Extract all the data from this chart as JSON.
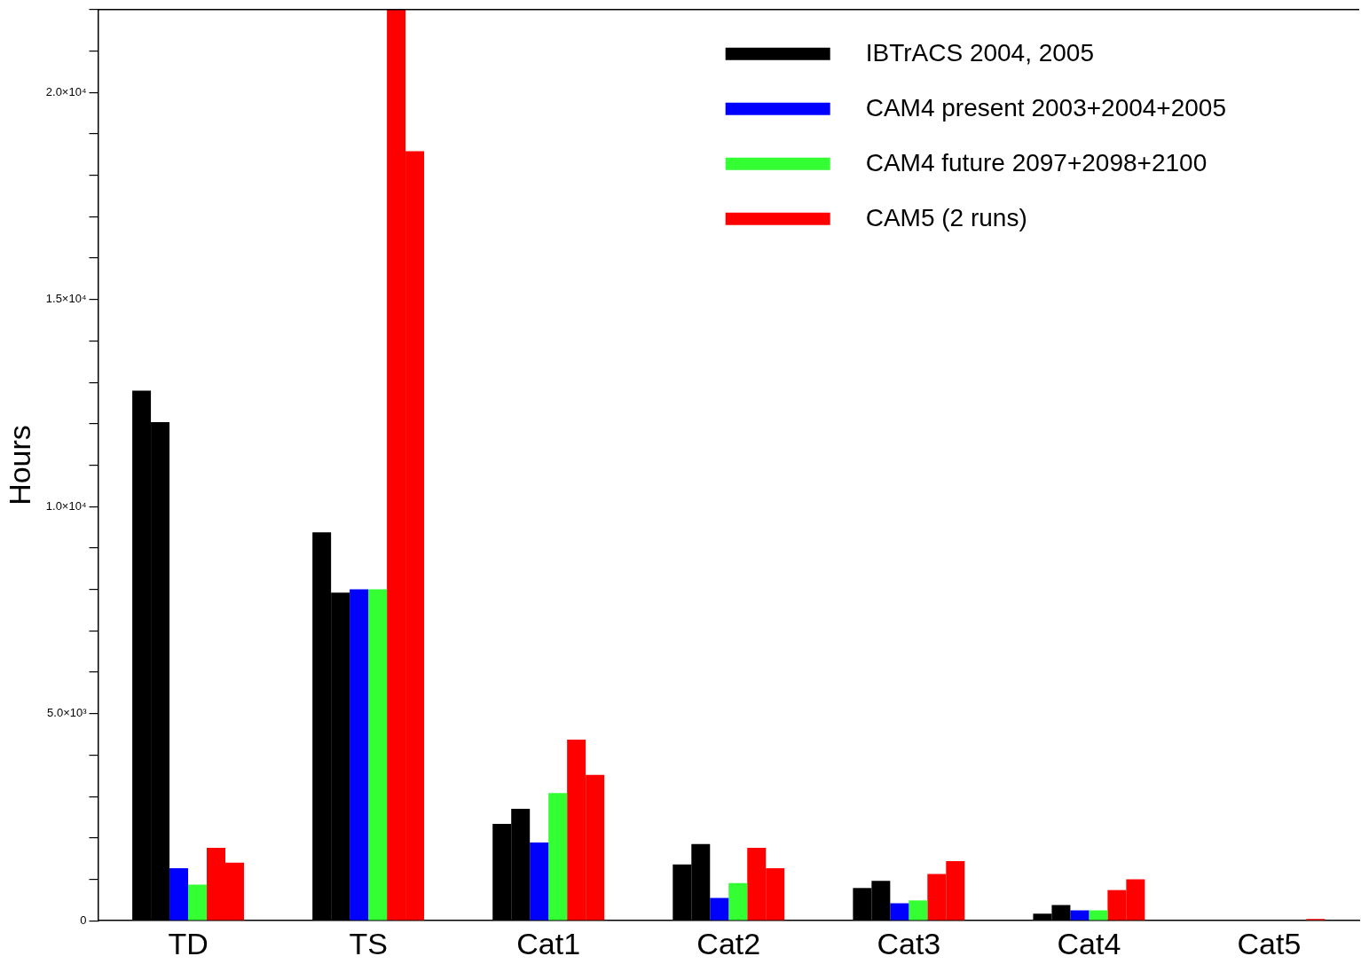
{
  "chart_data": {
    "type": "bar",
    "ylabel": "Hours",
    "categories": [
      "TD",
      "TS",
      "Cat1",
      "Cat2",
      "Cat3",
      "Cat4",
      "Cat5"
    ],
    "series": [
      {
        "name": "IBTrACS 2004, 2005",
        "color": "#000000",
        "values": [
          12800,
          9380,
          2340,
          1360,
          790,
          170,
          null
        ]
      },
      {
        "color": "#000000",
        "values": [
          12040,
          7920,
          2700,
          1850,
          960,
          380,
          null
        ]
      },
      {
        "name": "CAM4 present 2003+2004+2005",
        "color": "#0000ff",
        "values": [
          1270,
          8000,
          1890,
          550,
          420,
          250,
          0
        ]
      },
      {
        "name": "CAM4 future 2097+2098+2100",
        "color": "#33ff33",
        "values": [
          870,
          8000,
          3080,
          910,
          490,
          250,
          0
        ]
      },
      {
        "name": "CAM5 (2 runs)",
        "color": "#ff0000",
        "values": [
          1760,
          22000,
          4370,
          1760,
          1130,
          740,
          0
        ]
      },
      {
        "color": "#ff0000",
        "values": [
          1400,
          18580,
          3520,
          1270,
          1440,
          1000,
          40
        ]
      }
    ],
    "ylim": [
      0,
      22000
    ],
    "yticks": [
      {
        "value": 0,
        "label": "0"
      },
      {
        "value": 1000,
        "label": null
      },
      {
        "value": 2000,
        "label": null
      },
      {
        "value": 3000,
        "label": null
      },
      {
        "value": 4000,
        "label": null
      },
      {
        "value": 5000,
        "label": "5.0×10³"
      },
      {
        "value": 6000,
        "label": null
      },
      {
        "value": 7000,
        "label": null
      },
      {
        "value": 8000,
        "label": null
      },
      {
        "value": 9000,
        "label": null
      },
      {
        "value": 10000,
        "label": "1.0×10⁴"
      },
      {
        "value": 11000,
        "label": null
      },
      {
        "value": 12000,
        "label": null
      },
      {
        "value": 13000,
        "label": null
      },
      {
        "value": 14000,
        "label": null
      },
      {
        "value": 15000,
        "label": "1.5×10⁴"
      },
      {
        "value": 16000,
        "label": null
      },
      {
        "value": 17000,
        "label": null
      },
      {
        "value": 18000,
        "label": null
      },
      {
        "value": 19000,
        "label": null
      },
      {
        "value": 20000,
        "label": "2.0×10⁴"
      },
      {
        "value": 21000,
        "label": null
      },
      {
        "value": 22000,
        "label": null
      }
    ],
    "legend": "top right"
  }
}
